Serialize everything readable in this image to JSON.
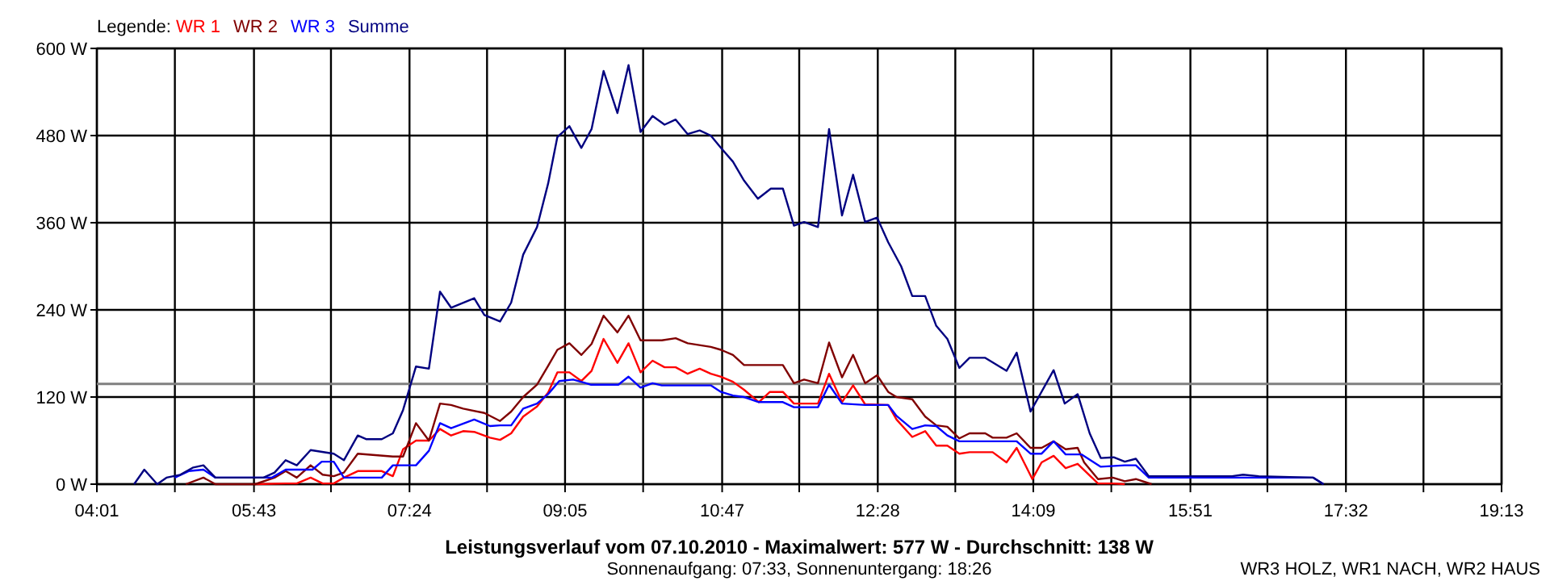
{
  "chart_data": {
    "type": "line",
    "title": "Leistungsverlauf vom 07.10.2010 - Maximalwert: 577 W - Durchschnitt: 138 W",
    "subtitle": "Sonnenaufgang: 07:33, Sonnenuntergang: 18:26",
    "legend_title": "Legende:",
    "legend": "top left",
    "grid": true,
    "line_style": "solid",
    "marker": "none",
    "annotations": [
      "WR3 HOLZ, WR1 NACH, WR2 HAUS"
    ],
    "xlim": [
      4.017,
      19.217
    ],
    "xticks": [
      {
        "value": 4.017,
        "label": "04:01"
      },
      {
        "value": 4.861,
        "label": null
      },
      {
        "value": 5.717,
        "label": "05:43"
      },
      {
        "value": 6.55,
        "label": null
      },
      {
        "value": 7.4,
        "label": "07:24"
      },
      {
        "value": 8.239,
        "label": null
      },
      {
        "value": 9.083,
        "label": "09:05"
      },
      {
        "value": 9.928,
        "label": null
      },
      {
        "value": 10.783,
        "label": "10:47"
      },
      {
        "value": 11.617,
        "label": null
      },
      {
        "value": 12.467,
        "label": "12:28"
      },
      {
        "value": 13.306,
        "label": null
      },
      {
        "value": 14.15,
        "label": "14:09"
      },
      {
        "value": 14.994,
        "label": null
      },
      {
        "value": 15.85,
        "label": "15:51"
      },
      {
        "value": 16.683,
        "label": null
      },
      {
        "value": 17.533,
        "label": "17:32"
      },
      {
        "value": 18.372,
        "label": null
      },
      {
        "value": 19.217,
        "label": "19:13"
      }
    ],
    "ylim": [
      0,
      600
    ],
    "yticks": [
      {
        "value": 0,
        "label": "0 W"
      },
      {
        "value": 120,
        "label": "120 W"
      },
      {
        "value": 240,
        "label": "240 W"
      },
      {
        "value": 360,
        "label": "360 W"
      },
      {
        "value": 480,
        "label": "480 W"
      },
      {
        "value": 600,
        "label": "600 W"
      }
    ],
    "ref_lines": [
      {
        "axis": "y",
        "value": 138,
        "color": "#808080"
      }
    ],
    "series": [
      {
        "name": "WR 1",
        "color": "#ff0000",
        "x": [
          5.73,
          6.06,
          6.18,
          6.33,
          6.46,
          6.58,
          6.69,
          6.84,
          7.1,
          7.22,
          7.33,
          7.47,
          7.61,
          7.73,
          7.85,
          7.98,
          8.1,
          8.27,
          8.38,
          8.5,
          8.63,
          8.78,
          8.9,
          9.0,
          9.13,
          9.26,
          9.37,
          9.5,
          9.65,
          9.77,
          9.9,
          10.03,
          10.16,
          10.28,
          10.41,
          10.54,
          10.66,
          10.77,
          10.9,
          11.02,
          11.18,
          11.3,
          11.44,
          11.56,
          11.82,
          11.94,
          12.08,
          12.2,
          12.33,
          12.58,
          12.67,
          12.84,
          12.98,
          13.1,
          13.22,
          13.35,
          13.46,
          13.71,
          13.86,
          13.97,
          14.14,
          14.24,
          14.37,
          14.5,
          14.63,
          14.85,
          15.01,
          15.14
        ],
        "values": [
          0,
          1,
          1,
          9,
          1,
          1,
          9,
          18,
          18,
          11,
          48,
          60,
          60,
          76,
          67,
          73,
          72,
          64,
          61,
          70,
          93,
          107,
          126,
          154,
          154,
          142,
          156,
          200,
          167,
          194,
          154,
          170,
          161,
          161,
          152,
          159,
          152,
          148,
          141,
          130,
          113,
          127,
          127,
          111,
          111,
          152,
          113,
          136,
          110,
          109,
          89,
          65,
          73,
          53,
          53,
          42,
          44,
          44,
          30,
          50,
          7,
          30,
          39,
          22,
          28,
          1,
          1,
          0
        ]
      },
      {
        "name": "WR 2",
        "color": "#800000",
        "x": [
          4.98,
          5.17,
          5.3,
          5.73,
          5.94,
          6.06,
          6.18,
          6.33,
          6.46,
          6.58,
          6.69,
          6.84,
          7.22,
          7.33,
          7.47,
          7.61,
          7.73,
          7.85,
          7.98,
          8.21,
          8.38,
          8.5,
          8.63,
          8.78,
          8.9,
          9.0,
          9.13,
          9.26,
          9.37,
          9.5,
          9.65,
          9.77,
          9.9,
          10.13,
          10.28,
          10.41,
          10.66,
          10.77,
          10.9,
          11.02,
          11.44,
          11.56,
          11.67,
          11.82,
          11.94,
          12.08,
          12.2,
          12.33,
          12.46,
          12.58,
          12.67,
          12.84,
          12.98,
          13.1,
          13.22,
          13.35,
          13.46,
          13.63,
          13.71,
          13.86,
          13.97,
          14.12,
          14.24,
          14.37,
          14.5,
          14.63,
          14.7,
          14.85,
          15.01,
          15.14,
          15.26,
          15.43
        ],
        "values": [
          0,
          9,
          0,
          0,
          9,
          18,
          9,
          26,
          13,
          11,
          16,
          42,
          38,
          38,
          84,
          60,
          111,
          109,
          104,
          98,
          87,
          100,
          120,
          137,
          163,
          185,
          194,
          178,
          193,
          232,
          209,
          232,
          198,
          198,
          201,
          194,
          189,
          185,
          178,
          164,
          164,
          139,
          144,
          139,
          195,
          147,
          178,
          139,
          150,
          127,
          120,
          117,
          93,
          81,
          79,
          63,
          70,
          70,
          64,
          64,
          70,
          50,
          50,
          59,
          48,
          50,
          30,
          7,
          9,
          4,
          7,
          0
        ]
      },
      {
        "name": "WR 3",
        "color": "#0000ff",
        "x": [
          4.86,
          5.01,
          5.17,
          5.3,
          5.91,
          6.06,
          6.35,
          6.45,
          6.58,
          6.69,
          7.1,
          7.22,
          7.47,
          7.61,
          7.73,
          7.85,
          8.1,
          8.27,
          8.38,
          8.5,
          8.63,
          8.78,
          8.9,
          9.02,
          9.17,
          9.31,
          9.36,
          9.66,
          9.77,
          9.9,
          10.03,
          10.13,
          10.66,
          10.77,
          10.9,
          11.02,
          11.18,
          11.44,
          11.56,
          11.82,
          11.94,
          12.08,
          12.33,
          12.58,
          12.67,
          12.84,
          12.98,
          13.1,
          13.22,
          13.35,
          13.97,
          14.12,
          14.24,
          14.37,
          14.5,
          14.67,
          14.88,
          15.14,
          15.26,
          15.4,
          17.18,
          17.29
        ],
        "values": [
          9,
          18,
          20,
          9,
          9,
          20,
          20,
          31,
          31,
          9,
          9,
          26,
          26,
          46,
          84,
          77,
          89,
          80,
          81,
          81,
          104,
          111,
          124,
          142,
          144,
          139,
          137,
          137,
          148,
          133,
          139,
          136,
          136,
          127,
          122,
          120,
          113,
          113,
          106,
          106,
          137,
          111,
          109,
          109,
          94,
          76,
          81,
          80,
          67,
          59,
          59,
          42,
          42,
          59,
          41,
          41,
          24,
          26,
          26,
          9,
          9,
          0
        ]
      },
      {
        "name": "Summe",
        "color": "#000080",
        "x": [
          4.42,
          4.53,
          4.67,
          4.77,
          4.92,
          5.06,
          5.17,
          5.3,
          5.82,
          5.94,
          6.06,
          6.18,
          6.33,
          6.58,
          6.69,
          6.84,
          6.93,
          7.1,
          7.22,
          7.33,
          7.47,
          7.61,
          7.73,
          7.85,
          8.1,
          8.21,
          8.38,
          8.5,
          8.63,
          8.78,
          8.9,
          9.0,
          9.13,
          9.26,
          9.37,
          9.5,
          9.65,
          9.77,
          9.9,
          10.03,
          10.16,
          10.28,
          10.41,
          10.54,
          10.66,
          10.77,
          10.9,
          11.02,
          11.17,
          11.31,
          11.44,
          11.56,
          11.67,
          11.82,
          11.94,
          12.08,
          12.2,
          12.33,
          12.46,
          12.58,
          12.72,
          12.84,
          12.98,
          13.1,
          13.22,
          13.35,
          13.46,
          13.63,
          13.86,
          13.97,
          14.12,
          14.37,
          14.49,
          14.63,
          14.76,
          14.88,
          15.02,
          15.14,
          15.26,
          15.4,
          16.3,
          16.42,
          16.59,
          17.18,
          17.29
        ],
        "values": [
          0,
          20,
          0,
          9,
          13,
          23,
          26,
          9,
          9,
          16,
          33,
          26,
          47,
          42,
          33,
          67,
          62,
          62,
          70,
          102,
          162,
          159,
          265,
          243,
          256,
          233,
          224,
          250,
          316,
          354,
          414,
          478,
          493,
          463,
          489,
          569,
          511,
          577,
          485,
          507,
          495,
          502,
          482,
          487,
          480,
          463,
          444,
          418,
          393,
          407,
          407,
          356,
          361,
          354,
          489,
          370,
          426,
          361,
          367,
          333,
          300,
          259,
          259,
          218,
          200,
          160,
          174,
          174,
          156,
          181,
          100,
          157,
          111,
          124,
          70,
          36,
          37,
          31,
          35,
          11,
          11,
          13,
          11,
          9,
          0
        ]
      }
    ]
  }
}
